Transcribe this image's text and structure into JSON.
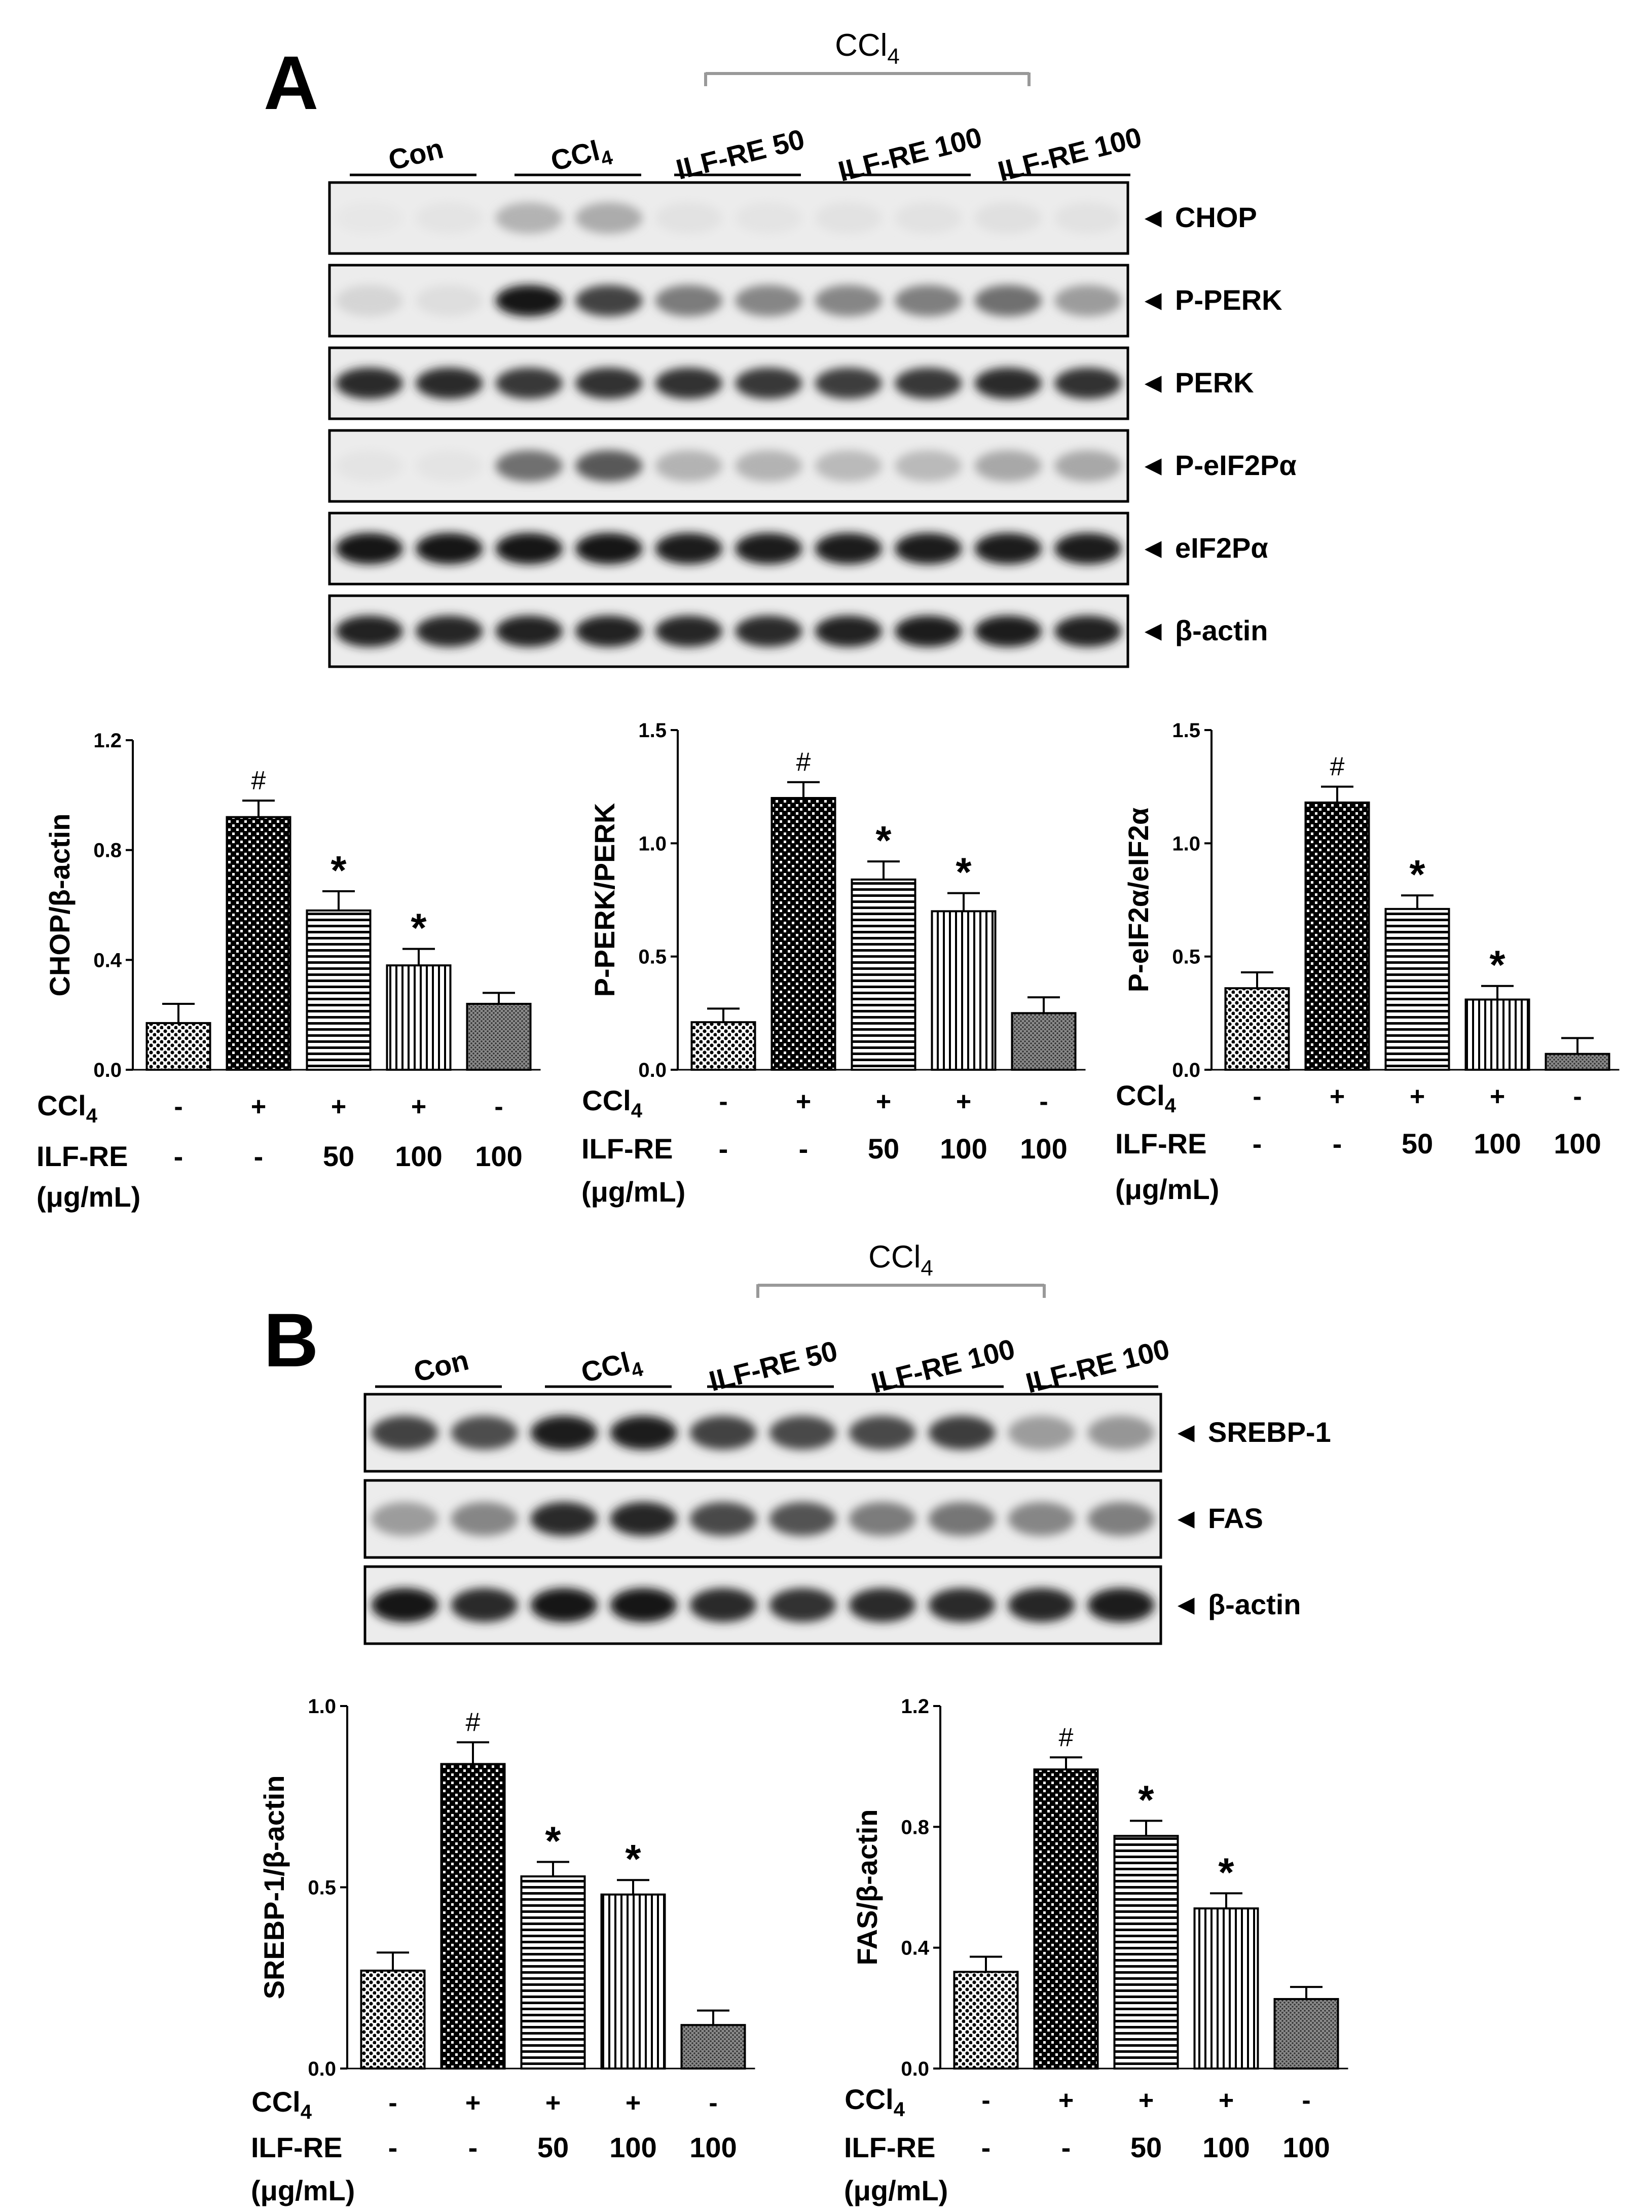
{
  "panel_A": {
    "label": "A",
    "ccl4_bracket": "CCl",
    "ccl4_sub": "4",
    "lanes": [
      {
        "text": "Con",
        "sub": ""
      },
      {
        "text": "CCl",
        "sub": "4"
      },
      {
        "text": "ILF-RE 50",
        "sub": ""
      },
      {
        "text": "ILF-RE 100",
        "sub": ""
      },
      {
        "text": "ILF-RE 100",
        "sub": ""
      }
    ],
    "blots": [
      {
        "label": "◄ CHOP",
        "intensity": [
          0.02,
          0.03,
          0.25,
          0.28,
          0.04,
          0.03,
          0.04,
          0.04,
          0.05,
          0.04
        ]
      },
      {
        "label": "◄ P-PERK",
        "intensity": [
          0.1,
          0.06,
          0.95,
          0.75,
          0.5,
          0.45,
          0.45,
          0.48,
          0.55,
          0.35
        ]
      },
      {
        "label": "◄ PERK",
        "intensity": [
          0.85,
          0.85,
          0.8,
          0.82,
          0.82,
          0.8,
          0.78,
          0.8,
          0.85,
          0.82
        ]
      },
      {
        "label": "◄ P-eIF2Pα",
        "intensity": [
          0.03,
          0.03,
          0.55,
          0.65,
          0.25,
          0.25,
          0.22,
          0.22,
          0.3,
          0.3
        ]
      },
      {
        "label": "◄ eIF2Pα",
        "intensity": [
          0.95,
          0.95,
          0.95,
          0.95,
          0.93,
          0.93,
          0.93,
          0.93,
          0.92,
          0.92
        ]
      },
      {
        "label": "◄ β-actin",
        "intensity": [
          0.9,
          0.88,
          0.9,
          0.9,
          0.88,
          0.86,
          0.9,
          0.92,
          0.92,
          0.9
        ]
      }
    ]
  },
  "panel_B": {
    "label": "B",
    "ccl4_bracket": "CCl",
    "ccl4_sub": "4",
    "lanes": [
      {
        "text": "Con",
        "sub": ""
      },
      {
        "text": "CCl",
        "sub": "4"
      },
      {
        "text": "ILF-RE 50",
        "sub": ""
      },
      {
        "text": "ILF-RE 100",
        "sub": ""
      },
      {
        "text": "ILF-RE 100",
        "sub": ""
      }
    ],
    "blots": [
      {
        "label": "◄ SREBP-1",
        "intensity": [
          0.75,
          0.7,
          0.92,
          0.92,
          0.75,
          0.72,
          0.72,
          0.78,
          0.35,
          0.38
        ]
      },
      {
        "label": "◄ FAS",
        "intensity": [
          0.35,
          0.45,
          0.85,
          0.88,
          0.72,
          0.68,
          0.5,
          0.52,
          0.45,
          0.48
        ]
      },
      {
        "label": "◄ β-actin",
        "intensity": [
          0.95,
          0.85,
          0.95,
          0.95,
          0.85,
          0.82,
          0.85,
          0.85,
          0.88,
          0.92
        ]
      }
    ]
  },
  "treatment_rows": {
    "ccl4_label": "CCl",
    "ccl4_sub": "4",
    "ccl4": [
      "-",
      "+",
      "+",
      "+",
      "-"
    ],
    "ilf_label": "ILF-RE",
    "ilf_unit": "(μg/mL)",
    "ilf": [
      "-",
      "-",
      "50",
      "100",
      "100"
    ]
  },
  "chart_data": [
    {
      "type": "bar",
      "panel": "A",
      "ylabel": "CHOP/β-actin",
      "ylim": [
        0,
        1.2
      ],
      "yticks": [
        "0.0",
        "0.4",
        "0.8",
        "1.2"
      ],
      "values": [
        0.17,
        0.92,
        0.58,
        0.38,
        0.24
      ],
      "errors": [
        0.07,
        0.06,
        0.07,
        0.06,
        0.04
      ],
      "marks": [
        "",
        "#",
        "*",
        "*",
        ""
      ]
    },
    {
      "type": "bar",
      "panel": "A",
      "ylabel": "P-PERK/PERK",
      "ylim": [
        0,
        1.5
      ],
      "yticks": [
        "0.0",
        "0.5",
        "1.0",
        "1.5"
      ],
      "values": [
        0.21,
        1.2,
        0.84,
        0.7,
        0.25
      ],
      "errors": [
        0.06,
        0.07,
        0.08,
        0.08,
        0.07
      ],
      "marks": [
        "",
        "#",
        "*",
        "*",
        ""
      ]
    },
    {
      "type": "bar",
      "panel": "A",
      "ylabel": "P-eIF2α/eIF2α",
      "ylim": [
        0,
        1.5
      ],
      "yticks": [
        "0.0",
        "0.5",
        "1.0",
        "1.5"
      ],
      "values": [
        0.36,
        1.18,
        0.71,
        0.31,
        0.07
      ],
      "errors": [
        0.07,
        0.07,
        0.06,
        0.06,
        0.07
      ],
      "marks": [
        "",
        "#",
        "*",
        "*",
        ""
      ]
    },
    {
      "type": "bar",
      "panel": "B",
      "ylabel": "SREBP-1/β-actin",
      "ylim": [
        0,
        1.0
      ],
      "yticks": [
        "0.0",
        "0.5",
        "1.0"
      ],
      "values": [
        0.27,
        0.84,
        0.53,
        0.48,
        0.12
      ],
      "errors": [
        0.05,
        0.06,
        0.04,
        0.04,
        0.04
      ],
      "marks": [
        "",
        "#",
        "*",
        "*",
        ""
      ]
    },
    {
      "type": "bar",
      "panel": "B",
      "ylabel": "FAS/β-actin",
      "ylim": [
        0,
        1.2
      ],
      "yticks": [
        "0.0",
        "0.4",
        "0.8",
        "1.2"
      ],
      "values": [
        0.32,
        0.99,
        0.77,
        0.53,
        0.23
      ],
      "errors": [
        0.05,
        0.04,
        0.05,
        0.05,
        0.04
      ],
      "marks": [
        "",
        "#",
        "*",
        "*",
        ""
      ]
    }
  ]
}
